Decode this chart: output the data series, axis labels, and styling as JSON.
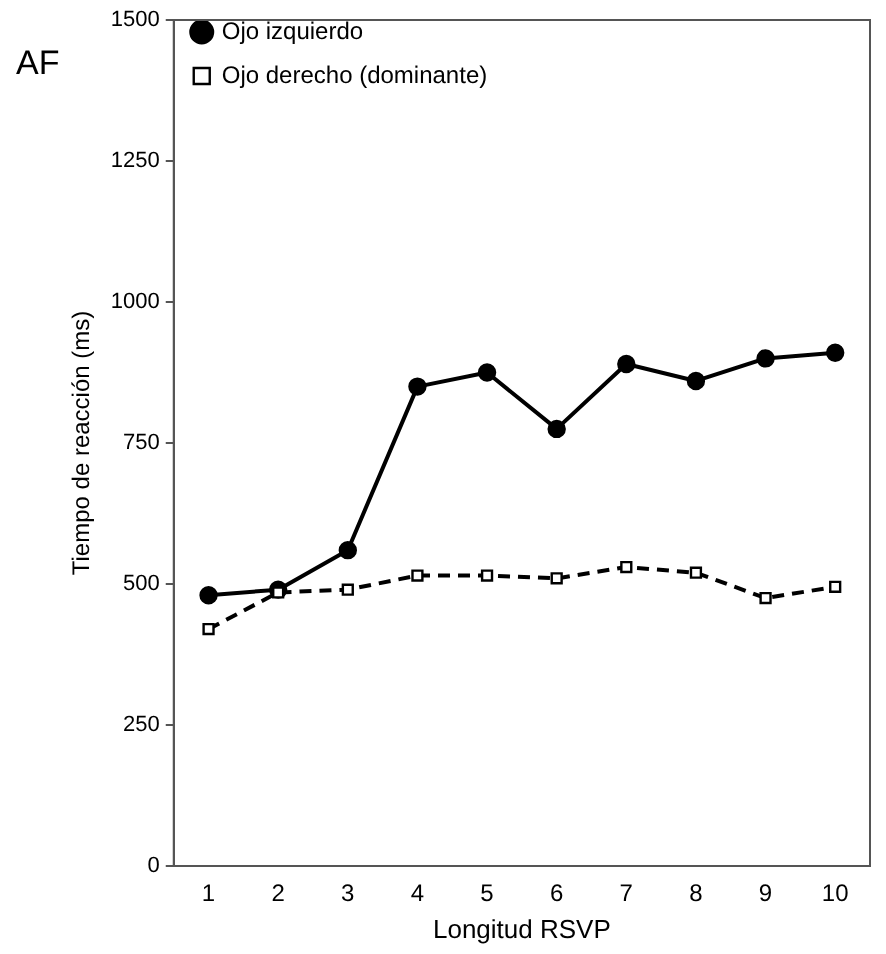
{
  "chart_data": {
    "type": "line",
    "xlabel": "Longitud RSVP",
    "ylabel": "Tiempo de reacción (ms)",
    "annotations": [
      "AF"
    ],
    "categories": [
      "1",
      "2",
      "3",
      "4",
      "5",
      "6",
      "7",
      "8",
      "9",
      "10"
    ],
    "series": [
      {
        "name": "Ojo izquierdo",
        "color": "#000000",
        "values": [
          480,
          490,
          560,
          850,
          875,
          775,
          890,
          860,
          900,
          910
        ],
        "marker": "circle",
        "line_style": "solid"
      },
      {
        "name": "Ojo derecho (dominante)",
        "color": "#000000",
        "values": [
          420,
          485,
          490,
          515,
          515,
          510,
          530,
          520,
          475,
          495
        ],
        "marker": "square",
        "line_style": "dashed"
      }
    ],
    "ylim": [
      0,
      1500
    ],
    "yticks": [
      0,
      250,
      500,
      750,
      1000,
      1250,
      1500
    ],
    "grid": false,
    "legend": "top left"
  }
}
